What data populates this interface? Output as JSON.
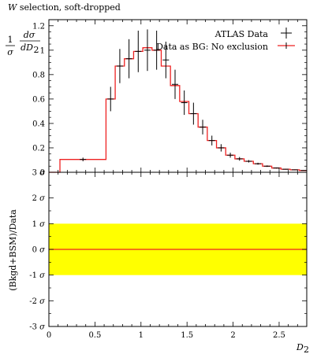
{
  "title": "W selection, soft-dropped",
  "xlabel": "D",
  "xlabel_sub": "2",
  "top_ylabel": {
    "frac1_num": "1",
    "frac1_den": "σ",
    "frac2_num": "dσ",
    "frac2_den": "dD",
    "frac2_den_sub": "2"
  },
  "bottom_ylabel": "(Bkgd+BSM)/Data",
  "colors": {
    "data": "#000000",
    "model": "#ee2222",
    "band": "#ffff00"
  },
  "chart_data": [
    {
      "type": "line",
      "panel": "main",
      "xlim": [
        0,
        2.8
      ],
      "ylim": [
        0,
        1.25
      ],
      "x_ticks": [
        "0",
        "0.5",
        "1",
        "1.5",
        "2",
        "2.5"
      ],
      "y_ticks": [
        "0",
        "0.2",
        "0.4",
        "0.6",
        "0.8",
        "1",
        "1.2"
      ],
      "legend_position": "top-right",
      "series": [
        {
          "name": "ATLAS Data",
          "style": "points-with-errorbars",
          "points": [
            {
              "x": 0.37,
              "y": 0.105,
              "err": 0.015
            },
            {
              "x": 0.67,
              "y": 0.6,
              "err": 0.1
            },
            {
              "x": 0.77,
              "y": 0.87,
              "err": 0.14
            },
            {
              "x": 0.87,
              "y": 0.93,
              "err": 0.16
            },
            {
              "x": 0.97,
              "y": 0.99,
              "err": 0.17
            },
            {
              "x": 1.07,
              "y": 1.0,
              "err": 0.17
            },
            {
              "x": 1.17,
              "y": 1.0,
              "err": 0.16
            },
            {
              "x": 1.27,
              "y": 0.92,
              "err": 0.15
            },
            {
              "x": 1.37,
              "y": 0.72,
              "err": 0.12
            },
            {
              "x": 1.47,
              "y": 0.57,
              "err": 0.1
            },
            {
              "x": 1.57,
              "y": 0.48,
              "err": 0.09
            },
            {
              "x": 1.67,
              "y": 0.37,
              "err": 0.06
            },
            {
              "x": 1.77,
              "y": 0.26,
              "err": 0.04
            },
            {
              "x": 1.87,
              "y": 0.2,
              "err": 0.03
            },
            {
              "x": 1.97,
              "y": 0.14,
              "err": 0.02
            },
            {
              "x": 2.07,
              "y": 0.11,
              "err": 0.015
            },
            {
              "x": 2.17,
              "y": 0.09,
              "err": 0.01
            },
            {
              "x": 2.27,
              "y": 0.07,
              "err": 0.008
            },
            {
              "x": 2.37,
              "y": 0.05,
              "err": 0.006
            },
            {
              "x": 2.47,
              "y": 0.035,
              "err": 0.004
            },
            {
              "x": 2.57,
              "y": 0.025,
              "err": 0.003
            },
            {
              "x": 2.67,
              "y": 0.02,
              "err": 0.003
            },
            {
              "x": 2.77,
              "y": 0.015,
              "err": 0.002
            }
          ]
        },
        {
          "name": "Data as BG: No exclusion",
          "style": "histogram-step",
          "edges": [
            0.0,
            0.12,
            0.62,
            0.72,
            0.82,
            0.92,
            1.02,
            1.12,
            1.22,
            1.32,
            1.42,
            1.52,
            1.62,
            1.72,
            1.82,
            1.92,
            2.02,
            2.12,
            2.22,
            2.32,
            2.42,
            2.52,
            2.62,
            2.72,
            2.8
          ],
          "values": [
            0.0,
            0.105,
            0.6,
            0.87,
            0.93,
            0.99,
            1.02,
            1.0,
            0.87,
            0.71,
            0.58,
            0.48,
            0.37,
            0.26,
            0.2,
            0.14,
            0.11,
            0.09,
            0.07,
            0.05,
            0.035,
            0.025,
            0.02,
            0.015
          ]
        }
      ]
    },
    {
      "type": "line",
      "panel": "ratio",
      "xlim": [
        0,
        2.8
      ],
      "ylim": [
        -3,
        3
      ],
      "x_ticks": [
        "0",
        "0.5",
        "1",
        "1.5",
        "2",
        "2.5"
      ],
      "y_ticks": [
        "-3 σ",
        "-2 σ",
        "-1 σ",
        "0 σ",
        "1 σ",
        "2 σ",
        "3 σ"
      ],
      "band": [
        -1,
        1
      ],
      "series": [
        {
          "name": "",
          "values_const": 0
        }
      ]
    }
  ]
}
